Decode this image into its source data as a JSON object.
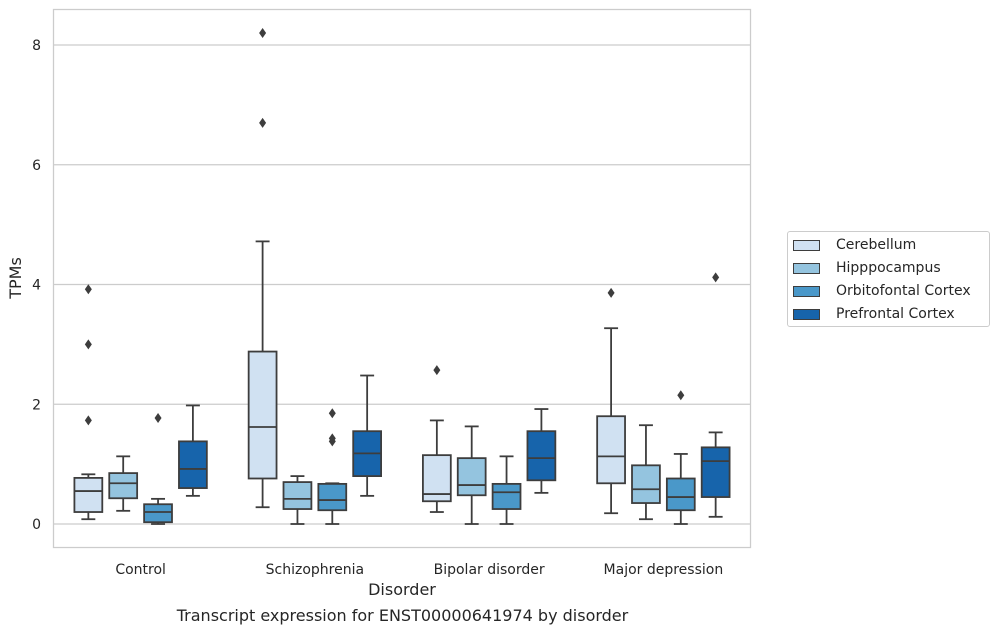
{
  "chart_data": {
    "type": "box",
    "title": "",
    "caption": "Transcript expression for ENST00000641974 by disorder",
    "xlabel": "Disorder",
    "ylabel": "TPMs",
    "ylim": [
      -0.4,
      8.6
    ],
    "yticks": [
      0,
      2,
      4,
      6,
      8
    ],
    "grid": "horizontal",
    "legend_position": "right",
    "categories": [
      "Control",
      "Schizophrenia",
      "Bipolar disorder",
      "Major depression"
    ],
    "series": [
      {
        "name": "Cerebellum",
        "color": "#d0e1f2",
        "boxes": [
          {
            "whisker_low": 0.08,
            "q1": 0.2,
            "median": 0.55,
            "q3": 0.77,
            "whisker_high": 0.83,
            "outliers": [
              1.73,
              3.0,
              3.92
            ]
          },
          {
            "whisker_low": 0.28,
            "q1": 0.76,
            "median": 1.62,
            "q3": 2.88,
            "whisker_high": 4.72,
            "outliers": [
              6.7,
              8.2
            ]
          },
          {
            "whisker_low": 0.2,
            "q1": 0.38,
            "median": 0.5,
            "q3": 1.15,
            "whisker_high": 1.73,
            "outliers": [
              2.57
            ]
          },
          {
            "whisker_low": 0.18,
            "q1": 0.68,
            "median": 1.13,
            "q3": 1.8,
            "whisker_high": 3.27,
            "outliers": [
              3.86
            ]
          }
        ]
      },
      {
        "name": "Hipppocampus",
        "color": "#94c4df",
        "boxes": [
          {
            "whisker_low": 0.22,
            "q1": 0.43,
            "median": 0.68,
            "q3": 0.85,
            "whisker_high": 1.13,
            "outliers": []
          },
          {
            "whisker_low": 0.0,
            "q1": 0.25,
            "median": 0.42,
            "q3": 0.7,
            "whisker_high": 0.8,
            "outliers": []
          },
          {
            "whisker_low": 0.0,
            "q1": 0.48,
            "median": 0.65,
            "q3": 1.1,
            "whisker_high": 1.63,
            "outliers": []
          },
          {
            "whisker_low": 0.08,
            "q1": 0.35,
            "median": 0.58,
            "q3": 0.98,
            "whisker_high": 1.65,
            "outliers": []
          }
        ]
      },
      {
        "name": "Orbitofontal Cortex",
        "color": "#4a98c9",
        "boxes": [
          {
            "whisker_low": 0.0,
            "q1": 0.03,
            "median": 0.2,
            "q3": 0.33,
            "whisker_high": 0.42,
            "outliers": [
              1.77
            ]
          },
          {
            "whisker_low": 0.0,
            "q1": 0.23,
            "median": 0.4,
            "q3": 0.67,
            "whisker_high": 0.68,
            "outliers": [
              1.38,
              1.43,
              1.85
            ]
          },
          {
            "whisker_low": 0.0,
            "q1": 0.25,
            "median": 0.53,
            "q3": 0.67,
            "whisker_high": 1.13,
            "outliers": []
          },
          {
            "whisker_low": 0.0,
            "q1": 0.23,
            "median": 0.45,
            "q3": 0.76,
            "whisker_high": 1.17,
            "outliers": [
              2.15
            ]
          }
        ]
      },
      {
        "name": "Prefrontal Cortex",
        "color": "#1764ab",
        "boxes": [
          {
            "whisker_low": 0.47,
            "q1": 0.6,
            "median": 0.92,
            "q3": 1.38,
            "whisker_high": 1.98,
            "outliers": []
          },
          {
            "whisker_low": 0.47,
            "q1": 0.8,
            "median": 1.18,
            "q3": 1.55,
            "whisker_high": 2.48,
            "outliers": []
          },
          {
            "whisker_low": 0.52,
            "q1": 0.73,
            "median": 1.1,
            "q3": 1.55,
            "whisker_high": 1.92,
            "outliers": []
          },
          {
            "whisker_low": 0.12,
            "q1": 0.45,
            "median": 1.05,
            "q3": 1.28,
            "whisker_high": 1.53,
            "outliers": [
              4.12
            ]
          }
        ]
      }
    ]
  }
}
